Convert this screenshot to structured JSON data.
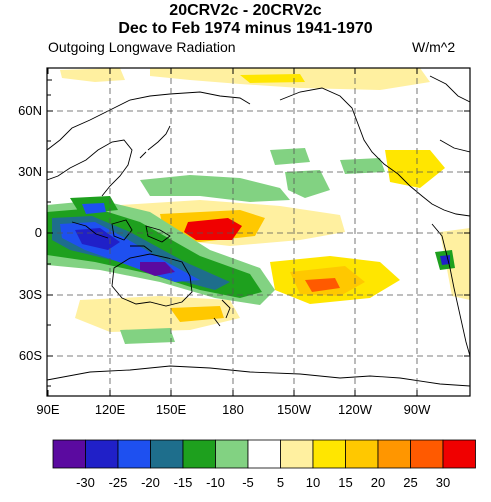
{
  "title": {
    "line1": "20CRV2c - 20CRV2c",
    "line2": "Dec to Feb 1974 minus 1941-1970"
  },
  "subtitle": "Outgoing Longwave Radiation",
  "units": "W/m^2",
  "lat_labels": [
    "60N",
    "30N",
    "0",
    "30S",
    "60S"
  ],
  "lon_labels": [
    "90E",
    "120E",
    "150E",
    "180",
    "150W",
    "120W",
    "90W"
  ],
  "colorbar": {
    "tick_labels": [
      "-30",
      "-25",
      "-20",
      "-15",
      "-10",
      "-5",
      "5",
      "10",
      "15",
      "20",
      "25",
      "30"
    ],
    "colors": [
      "#5b0aa0",
      "#2020c8",
      "#1e50f0",
      "#1e6e8c",
      "#1ea01e",
      "#82d282",
      "#ffffff",
      "#fff0a0",
      "#ffe600",
      "#ffc800",
      "#ff9600",
      "#ff5a00",
      "#f00000"
    ]
  },
  "colors": {
    "land_outline": "#000000",
    "grid": "#555555"
  }
}
